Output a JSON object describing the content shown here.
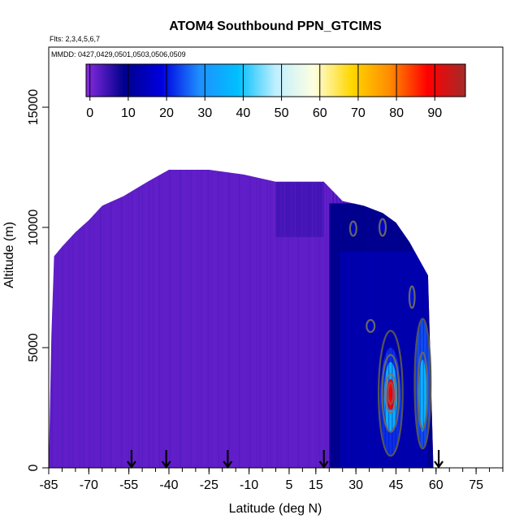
{
  "chart_data": {
    "type": "heatmap",
    "title": "ATOM4 Southbound PPN_GTCIMS",
    "flights_note": "Flts: 2,3,4,5,6,7",
    "date_note": "MMDD: 0427,0429,0501,0503,0506,0509",
    "xlabel": "Latitude (deg N)",
    "ylabel": "Altitude (m)",
    "xlim": [
      -85,
      85
    ],
    "ylim": [
      0,
      17500
    ],
    "x_ticks": [
      -85,
      -70,
      -55,
      -40,
      -25,
      -10,
      5,
      15,
      30,
      45,
      60,
      75
    ],
    "x_tick_labels": [
      "-85",
      "-70",
      "-55",
      "-40",
      "-25",
      "-10",
      "5",
      "15",
      "30",
      "45",
      "60",
      "75"
    ],
    "x_minor_step": 5,
    "y_ticks": [
      0,
      5000,
      10000,
      15000
    ],
    "y_tick_labels": [
      "0",
      "5000",
      "10000",
      "15000"
    ],
    "colorbar": {
      "min": -1,
      "max": 98,
      "ticks": [
        0,
        10,
        20,
        30,
        40,
        50,
        60,
        70,
        80,
        90
      ],
      "tick_labels": [
        "0",
        "10",
        "20",
        "30",
        "40",
        "50",
        "60",
        "70",
        "80",
        "90"
      ],
      "colors": [
        "#8a2be2",
        "#00008b",
        "#0000e0",
        "#1e90ff",
        "#00bfff",
        "#bfefff",
        "#ffffe0",
        "#ffd700",
        "#ff8c00",
        "#ff0000",
        "#a52a2a"
      ]
    },
    "arrow_latitudes": [
      -54,
      -41,
      -18,
      18,
      61
    ],
    "altitude_envelope": [
      {
        "lat": -85,
        "top": 0
      },
      {
        "lat": -84,
        "top": 5500
      },
      {
        "lat": -83,
        "top": 8800
      },
      {
        "lat": -80,
        "top": 9200
      },
      {
        "lat": -75,
        "top": 9800
      },
      {
        "lat": -70,
        "top": 10300
      },
      {
        "lat": -65,
        "top": 10900
      },
      {
        "lat": -57,
        "top": 11300
      },
      {
        "lat": -48,
        "top": 11900
      },
      {
        "lat": -40,
        "top": 12400
      },
      {
        "lat": -25,
        "top": 12400
      },
      {
        "lat": -12,
        "top": 12200
      },
      {
        "lat": 0,
        "top": 11900
      },
      {
        "lat": 18,
        "top": 11900
      },
      {
        "lat": 25,
        "top": 11100
      },
      {
        "lat": 33,
        "top": 10900
      },
      {
        "lat": 40,
        "top": 10600
      },
      {
        "lat": 45,
        "top": 10200
      },
      {
        "lat": 50,
        "top": 9400
      },
      {
        "lat": 54,
        "top": 8600
      },
      {
        "lat": 57,
        "top": 8000
      },
      {
        "lat": 59,
        "top": 0
      }
    ],
    "regions": [
      {
        "name": "background",
        "lat": [
          -85,
          59
        ],
        "alt": [
          0,
          12400
        ],
        "value": 2
      },
      {
        "name": "tropical-upper-darker",
        "lat": [
          0,
          18
        ],
        "alt": [
          9600,
          11900
        ],
        "value": 4
      },
      {
        "name": "northern-band",
        "lat": [
          20,
          59
        ],
        "alt": [
          0,
          11000
        ],
        "value": 9
      },
      {
        "name": "northern-core",
        "lat": [
          24,
          57
        ],
        "alt": [
          0,
          9000
        ],
        "value": 13
      },
      {
        "name": "plume-west-outer",
        "lat": [
          39,
          47
        ],
        "alt": [
          500,
          5000
        ],
        "value": 22
      },
      {
        "name": "plume-west-mid",
        "lat": [
          40.5,
          45.5
        ],
        "alt": [
          1500,
          4400
        ],
        "value": 35
      },
      {
        "name": "plume-west-core",
        "lat": [
          41.5,
          44.5
        ],
        "alt": [
          2400,
          3700
        ],
        "value": 88
      },
      {
        "name": "plume-east-outer",
        "lat": [
          52,
          58
        ],
        "alt": [
          800,
          6200
        ],
        "value": 24
      },
      {
        "name": "plume-east-core",
        "lat": [
          53.5,
          56.5
        ],
        "alt": [
          1500,
          4500
        ],
        "value": 36
      },
      {
        "name": "spot-1",
        "lat": [
          28,
          30
        ],
        "alt": [
          9700,
          10200
        ],
        "value": 15
      },
      {
        "name": "spot-2",
        "lat": [
          39,
          41
        ],
        "alt": [
          9800,
          10300
        ],
        "value": 18
      },
      {
        "name": "spot-3",
        "lat": [
          50,
          52
        ],
        "alt": [
          6800,
          7500
        ],
        "value": 20
      },
      {
        "name": "spot-4",
        "lat": [
          34,
          37
        ],
        "alt": [
          5700,
          6200
        ],
        "value": 16
      }
    ],
    "contours": [
      {
        "cx": 43,
        "cy": 3100,
        "rx": 4.5,
        "ry": 2600,
        "color": "#555555",
        "value": 20
      },
      {
        "cx": 43,
        "cy": 3100,
        "rx": 3.2,
        "ry": 1600,
        "color": "#666666",
        "value": 40
      },
      {
        "cx": 43,
        "cy": 3100,
        "rx": 2.0,
        "ry": 800,
        "color": "#777777",
        "value": 60
      },
      {
        "cx": 43,
        "cy": 3100,
        "rx": 1.0,
        "ry": 450,
        "color": "#aa4444",
        "value": 80
      },
      {
        "cx": 55,
        "cy": 3500,
        "rx": 3.0,
        "ry": 2700,
        "color": "#555555",
        "value": 20
      },
      {
        "cx": 55,
        "cy": 3200,
        "rx": 1.8,
        "ry": 1600,
        "color": "#666666",
        "value": 30
      },
      {
        "cx": 29,
        "cy": 9950,
        "rx": 1.2,
        "ry": 300,
        "color": "#666666",
        "value": 20
      },
      {
        "cx": 40,
        "cy": 10000,
        "rx": 1.2,
        "ry": 350,
        "color": "#666666",
        "value": 20
      },
      {
        "cx": 51,
        "cy": 7100,
        "rx": 1.0,
        "ry": 450,
        "color": "#666666",
        "value": 20
      },
      {
        "cx": 35.5,
        "cy": 5900,
        "rx": 1.5,
        "ry": 250,
        "color": "#666666",
        "value": 20
      }
    ]
  }
}
